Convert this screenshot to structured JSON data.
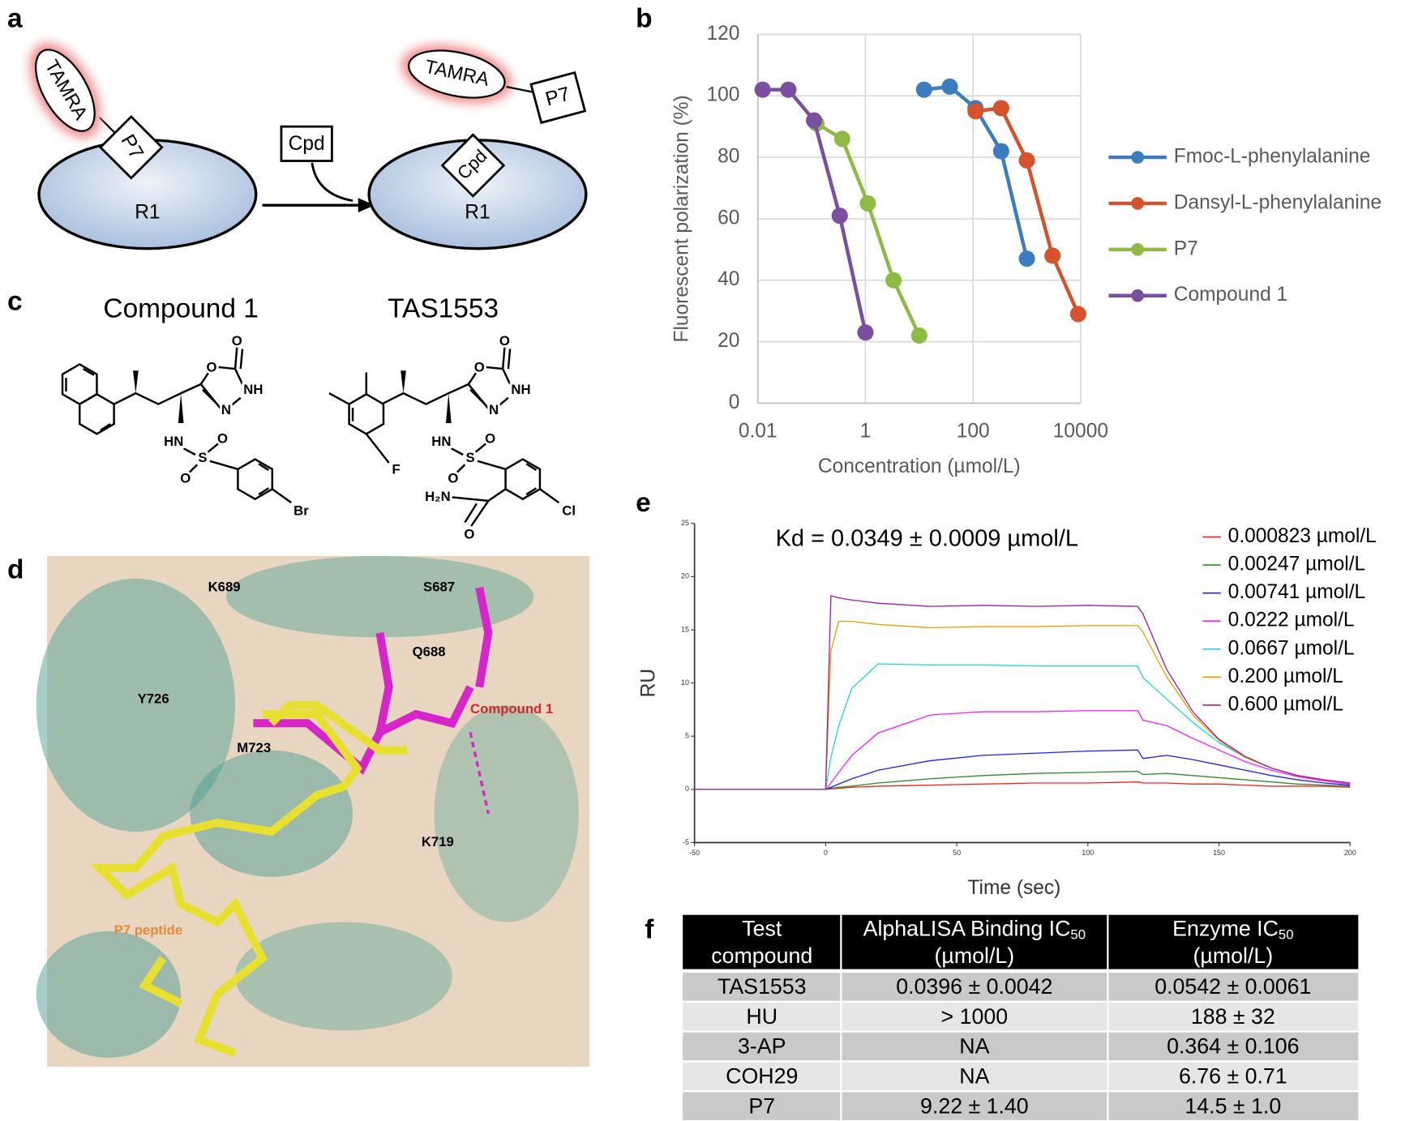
{
  "panel_labels": [
    "a",
    "b",
    "c",
    "d",
    "e",
    "f"
  ],
  "diagram": {
    "left": {
      "tamra": "TAMRA",
      "p7": "P7",
      "r1": "R1"
    },
    "added": "Cpd",
    "right": {
      "tamra": "TAMRA",
      "p7": "P7",
      "cpd": "Cpd",
      "r1": "R1"
    }
  },
  "structures": [
    {
      "name": "Compound 1",
      "atoms": [
        "O",
        "O",
        "NH",
        "N",
        "HN",
        "S",
        "O",
        "O",
        "Br"
      ]
    },
    {
      "name": "TAS1553",
      "atoms": [
        "O",
        "O",
        "NH",
        "N",
        "HN",
        "S",
        "O",
        "O",
        "F",
        "H₂N",
        "O",
        "Cl"
      ]
    }
  ],
  "structure_image": {
    "labels": [
      "S687",
      "K689",
      "Q688",
      "Y726",
      "Compound 1",
      "M723",
      "K719",
      "P7 peptide"
    ]
  },
  "chart_data": [
    {
      "type": "line",
      "markers": true,
      "xscale": "log",
      "x_label": "Concentration (µmol/L)",
      "y_label": "Fluorescent polarization (%)",
      "xlim": [
        0.01,
        10000
      ],
      "xticks": [
        0.01,
        1,
        100,
        10000
      ],
      "ylim": [
        0,
        120
      ],
      "yticks": [
        0,
        20,
        40,
        60,
        80,
        100,
        120
      ],
      "grid": true,
      "legend": "right",
      "series": [
        {
          "name": "Fmoc-L-phenylalanine",
          "color": "#3b7bbf",
          "x": [
            12.3,
            37,
            111,
            333,
            1000
          ],
          "values": [
            102,
            103,
            96,
            82,
            47
          ]
        },
        {
          "name": "Dansyl-L-phenylalanine",
          "color": "#d4532c",
          "x": [
            111,
            333,
            1000,
            3000,
            9000
          ],
          "values": [
            95,
            96,
            79,
            48,
            29
          ]
        },
        {
          "name": "P7",
          "color": "#8dbb45",
          "x": [
            0.123,
            0.37,
            1.11,
            3.33,
            10
          ],
          "values": [
            91,
            86,
            65,
            40,
            22
          ]
        },
        {
          "name": "Compound 1",
          "color": "#7b4fa0",
          "x": [
            0.0123,
            0.037,
            0.111,
            0.333,
            1
          ],
          "values": [
            102,
            102,
            92,
            61,
            23
          ]
        }
      ]
    },
    {
      "type": "line",
      "markers": false,
      "annotation": "Kd = 0.0349 ± 0.0009 µmol/L",
      "x_label": "Time (sec)",
      "y_label": "RU",
      "xlim": [
        -50,
        200
      ],
      "xticks": [
        -50,
        0,
        50,
        100,
        150,
        200
      ],
      "ylim": [
        -5,
        25
      ],
      "yticks": [
        -5,
        0,
        5,
        10,
        15,
        20,
        25
      ],
      "grid": false,
      "legend": "right",
      "x": [
        -50,
        -10,
        0,
        2,
        5,
        10,
        20,
        40,
        60,
        80,
        100,
        119,
        121,
        130,
        140,
        150,
        160,
        170,
        180,
        190,
        200
      ],
      "series": [
        {
          "name": "0.000823 µmol/L",
          "color": "#ff2020",
          "values": [
            0,
            0,
            0,
            0.05,
            0.1,
            0.2,
            0.3,
            0.4,
            0.5,
            0.6,
            0.6,
            0.7,
            0.6,
            0.6,
            0.5,
            0.5,
            0.4,
            0.3,
            0.3,
            0.3,
            0.2
          ]
        },
        {
          "name": "0.00247 µmol/L",
          "color": "#2e8b2e",
          "values": [
            0,
            0,
            0,
            0.1,
            0.2,
            0.3,
            0.6,
            1.0,
            1.3,
            1.5,
            1.6,
            1.7,
            1.4,
            1.5,
            1.3,
            1.1,
            0.9,
            0.7,
            0.5,
            0.4,
            0.3
          ]
        },
        {
          "name": "0.00741 µmol/L",
          "color": "#1f1fff",
          "values": [
            0,
            0,
            0,
            0.2,
            0.5,
            1.0,
            1.8,
            2.7,
            3.2,
            3.4,
            3.6,
            3.7,
            2.9,
            3.2,
            2.8,
            2.3,
            1.8,
            1.3,
            0.9,
            0.6,
            0.4
          ]
        },
        {
          "name": "0.0222 µmol/L",
          "color": "#ff20ff",
          "values": [
            0,
            0,
            0,
            0.6,
            1.6,
            3.2,
            5.3,
            7.0,
            7.3,
            7.3,
            7.4,
            7.4,
            6.5,
            6.0,
            4.8,
            3.7,
            2.6,
            1.8,
            1.2,
            0.8,
            0.5
          ]
        },
        {
          "name": "0.0667 µmol/L",
          "color": "#20d8d8",
          "values": [
            0,
            0,
            0,
            3,
            6,
            9.5,
            11.8,
            11.7,
            11.7,
            11.6,
            11.6,
            11.6,
            10.5,
            8.5,
            6.3,
            4.4,
            3.0,
            2.0,
            1.3,
            0.9,
            0.6
          ]
        },
        {
          "name": "0.200 µmol/L",
          "color": "#e8a000",
          "values": [
            0,
            0,
            0,
            13,
            15.8,
            15.8,
            15.5,
            15.2,
            15.3,
            15.3,
            15.4,
            15.4,
            14.8,
            10.6,
            7.0,
            4.6,
            3.0,
            2.0,
            1.3,
            0.9,
            0.6
          ]
        },
        {
          "name": "0.600 µmol/L",
          "color": "#a020a0",
          "values": [
            0,
            0,
            0,
            18.2,
            18.0,
            17.8,
            17.5,
            17.2,
            17.3,
            17.2,
            17.3,
            17.2,
            16.5,
            11.3,
            7.3,
            4.7,
            3.1,
            2.0,
            1.3,
            0.9,
            0.6
          ]
        }
      ]
    }
  ],
  "table": {
    "headers": [
      {
        "lines": [
          "Test",
          "compound"
        ]
      },
      {
        "lines": [
          "AlphaLISA Binding IC",
          "(µmol/L)"
        ],
        "sub": "50"
      },
      {
        "lines": [
          "Enzyme IC",
          "(µmol/L)"
        ],
        "sub": "50"
      }
    ],
    "rows": [
      [
        "TAS1553",
        "0.0396 ± 0.0042",
        "0.0542 ± 0.0061"
      ],
      [
        "HU",
        "> 1000",
        "188 ± 32"
      ],
      [
        "3-AP",
        "NA",
        "0.364 ± 0.106"
      ],
      [
        "COH29",
        "NA",
        "6.76 ± 0.71"
      ],
      [
        "P7",
        "9.22 ± 1.40",
        "14.5 ± 1.0"
      ]
    ]
  }
}
